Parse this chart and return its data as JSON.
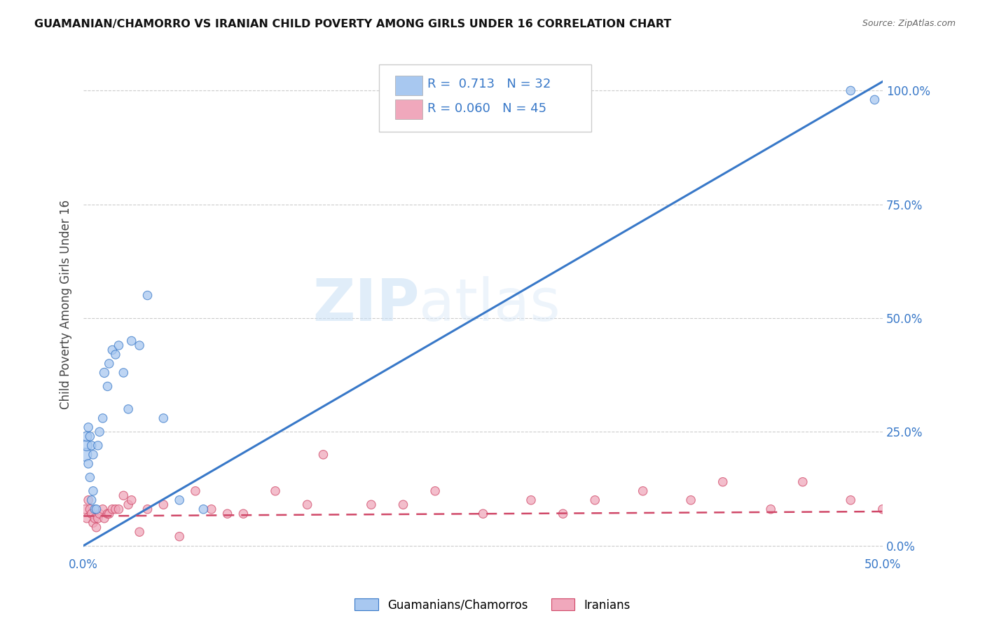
{
  "title": "GUAMANIAN/CHAMORRO VS IRANIAN CHILD POVERTY AMONG GIRLS UNDER 16 CORRELATION CHART",
  "source": "Source: ZipAtlas.com",
  "ylabel_label": "Child Poverty Among Girls Under 16",
  "watermark_part1": "ZIP",
  "watermark_part2": "atlas",
  "legend_label1": "Guamanians/Chamorros",
  "legend_label2": "Iranians",
  "R1": 0.713,
  "N1": 32,
  "R2": 0.06,
  "N2": 45,
  "color1": "#a8c8f0",
  "color2": "#f0a8bc",
  "line_color1": "#3878c8",
  "line_color2": "#d04868",
  "background": "#ffffff",
  "xlim": [
    0.0,
    0.5
  ],
  "ylim": [
    -0.02,
    1.08
  ],
  "xtick_positions": [
    0.0,
    0.5
  ],
  "xtick_labels": [
    "0.0%",
    "50.0%"
  ],
  "ytick_positions": [
    0.0,
    0.25,
    0.5,
    0.75,
    1.0
  ],
  "ytick_labels": [
    "0.0%",
    "25.0%",
    "50.0%",
    "75.0%",
    "100.0%"
  ],
  "guam_line_x": [
    0.0,
    0.5
  ],
  "guam_line_y": [
    0.0,
    1.02
  ],
  "iran_line_x": [
    0.0,
    0.5
  ],
  "iran_line_y": [
    0.065,
    0.075
  ],
  "guam_x": [
    0.001,
    0.002,
    0.002,
    0.003,
    0.003,
    0.004,
    0.004,
    0.005,
    0.005,
    0.006,
    0.006,
    0.007,
    0.008,
    0.009,
    0.01,
    0.012,
    0.013,
    0.015,
    0.016,
    0.018,
    0.02,
    0.022,
    0.025,
    0.028,
    0.03,
    0.035,
    0.04,
    0.05,
    0.06,
    0.075,
    0.48,
    0.495
  ],
  "guam_y": [
    0.2,
    0.22,
    0.24,
    0.26,
    0.18,
    0.15,
    0.24,
    0.1,
    0.22,
    0.12,
    0.2,
    0.08,
    0.08,
    0.22,
    0.25,
    0.28,
    0.38,
    0.35,
    0.4,
    0.43,
    0.42,
    0.44,
    0.38,
    0.3,
    0.45,
    0.44,
    0.55,
    0.28,
    0.1,
    0.08,
    1.0,
    0.98
  ],
  "guam_s": [
    180,
    120,
    100,
    80,
    80,
    80,
    80,
    80,
    80,
    80,
    80,
    80,
    80,
    80,
    80,
    80,
    90,
    80,
    80,
    80,
    80,
    80,
    80,
    80,
    80,
    80,
    80,
    80,
    80,
    80,
    80,
    80
  ],
  "iran_x": [
    0.001,
    0.002,
    0.003,
    0.004,
    0.005,
    0.006,
    0.007,
    0.008,
    0.009,
    0.01,
    0.012,
    0.013,
    0.015,
    0.016,
    0.018,
    0.02,
    0.022,
    0.025,
    0.028,
    0.03,
    0.035,
    0.04,
    0.05,
    0.06,
    0.07,
    0.08,
    0.09,
    0.1,
    0.12,
    0.14,
    0.15,
    0.18,
    0.2,
    0.22,
    0.25,
    0.28,
    0.3,
    0.32,
    0.35,
    0.38,
    0.4,
    0.43,
    0.45,
    0.48,
    0.5
  ],
  "iran_y": [
    0.08,
    0.06,
    0.1,
    0.08,
    0.07,
    0.05,
    0.06,
    0.04,
    0.06,
    0.07,
    0.08,
    0.06,
    0.07,
    0.07,
    0.08,
    0.08,
    0.08,
    0.11,
    0.09,
    0.1,
    0.03,
    0.08,
    0.09,
    0.02,
    0.12,
    0.08,
    0.07,
    0.07,
    0.12,
    0.09,
    0.2,
    0.09,
    0.09,
    0.12,
    0.07,
    0.1,
    0.07,
    0.1,
    0.12,
    0.1,
    0.14,
    0.08,
    0.14,
    0.1,
    0.08
  ],
  "iran_s": [
    80,
    80,
    80,
    80,
    80,
    80,
    80,
    80,
    80,
    80,
    80,
    80,
    80,
    80,
    80,
    80,
    80,
    80,
    80,
    80,
    80,
    80,
    80,
    80,
    80,
    80,
    80,
    80,
    80,
    80,
    80,
    80,
    80,
    80,
    80,
    80,
    80,
    80,
    80,
    80,
    80,
    80,
    80,
    80,
    80
  ]
}
